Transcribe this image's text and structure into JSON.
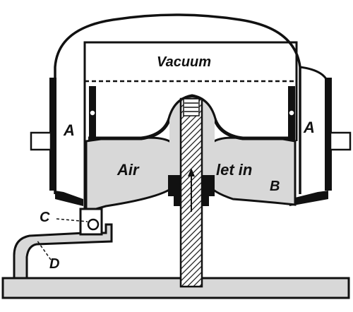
{
  "labels": {
    "vacuum": "Vacuum",
    "air": "Air",
    "let_in": "let in",
    "a_left": "A",
    "a_right": "A",
    "b": "B",
    "c": "C",
    "d": "D"
  },
  "colors": {
    "ink": "#111111",
    "fill": "#d8d8d8",
    "paper": "#ffffff"
  }
}
